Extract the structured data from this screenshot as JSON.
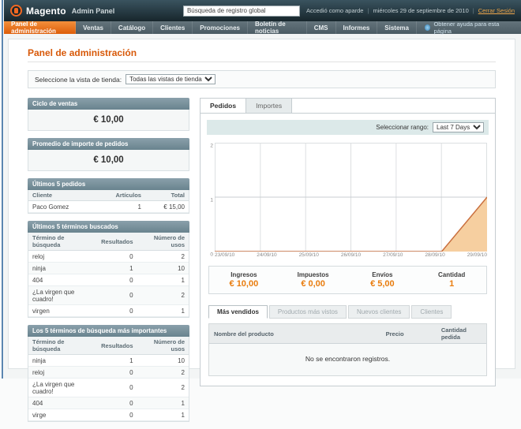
{
  "header": {
    "logo_title": "Magento",
    "logo_subtitle": "Admin Panel",
    "search_value": "Búsqueda de registro global",
    "logged_in": "Accedió como aparde",
    "date": "miércoles 29 de septiembre de 2010",
    "logout": "Cerrar Sesión"
  },
  "nav": {
    "items": [
      "Panel de administración",
      "Ventas",
      "Catálogo",
      "Clientes",
      "Promociones",
      "Boletín de noticias",
      "CMS",
      "Informes",
      "Sistema"
    ],
    "active_index": 0,
    "help": "Obtener ayuda para esta página"
  },
  "page": {
    "title": "Panel de administración",
    "store_switcher_label": "Seleccione la vista de tienda:",
    "store_switcher_value": "Todas las vistas de tienda"
  },
  "left": {
    "lifetime_sales": {
      "title": "Ciclo de ventas",
      "value": "€ 10,00"
    },
    "average_orders": {
      "title": "Promedio de importe de pedidos",
      "value": "€ 10,00"
    },
    "last_orders": {
      "title": "Últimos 5 pedidos",
      "columns": [
        "Cliente",
        "Artículos",
        "Total"
      ],
      "rows": [
        [
          "Paco Gomez",
          "1",
          "€ 15,00"
        ]
      ]
    },
    "last_search_terms": {
      "title": "Últimos 5 términos buscados",
      "columns": [
        "Término de búsqueda",
        "Resultados",
        "Número de usos"
      ],
      "rows": [
        [
          "reloj",
          "0",
          "2"
        ],
        [
          "ninja",
          "1",
          "10"
        ],
        [
          "404",
          "0",
          "1"
        ],
        [
          "¿La virgen que cuadro!",
          "0",
          "2"
        ],
        [
          "virgen",
          "0",
          "1"
        ]
      ]
    },
    "top_search_terms": {
      "title": "Los 5 términos de búsqueda más importantes",
      "columns": [
        "Término de búsqueda",
        "Resultados",
        "Número de usos"
      ],
      "rows": [
        [
          "ninja",
          "1",
          "10"
        ],
        [
          "reloj",
          "0",
          "2"
        ],
        [
          "¿La virgen que cuadro!",
          "0",
          "2"
        ],
        [
          "404",
          "0",
          "1"
        ],
        [
          "virge",
          "0",
          "1"
        ]
      ]
    }
  },
  "dashboard": {
    "tabs": [
      "Pedidos",
      "Importes"
    ],
    "active_tab_index": 0,
    "range_label": "Seleccionar rango:",
    "range_value": "Last 7 Days",
    "stats": [
      {
        "label": "Ingresos",
        "value": "€ 10,00"
      },
      {
        "label": "Impuestos",
        "value": "€ 0,00"
      },
      {
        "label": "Envíos",
        "value": "€ 5,00"
      },
      {
        "label": "Cantidad",
        "value": "1"
      }
    ],
    "bottom_tabs": [
      {
        "label": "Más vendidos",
        "active": true
      },
      {
        "label": "Productos más vistos",
        "active": false
      },
      {
        "label": "Nuevos clientes",
        "active": false
      },
      {
        "label": "Clientes",
        "active": false
      }
    ],
    "products_table": {
      "columns": [
        "Nombre del producto",
        "Precio",
        "Cantidad pedida"
      ],
      "empty_message": "No se encontraron registros."
    }
  },
  "chart_data": {
    "type": "area",
    "title": "Pedidos - Last 7 Days",
    "x": [
      "23/09/10",
      "24/09/10",
      "25/09/10",
      "26/09/10",
      "27/09/10",
      "28/09/10",
      "29/09/10"
    ],
    "values": [
      0,
      0,
      0,
      0,
      0,
      0,
      1
    ],
    "ylim": [
      0,
      2
    ],
    "yticks": [
      0,
      1,
      2
    ],
    "grid": true,
    "legend": "none",
    "fill_color": "#f6cfa0",
    "line_color": "#c96f3e",
    "grid_color": "#dcdfe1"
  },
  "colors": {
    "accent_orange": "#e97c0d",
    "nav_active": "#dd5d09",
    "widget_header": "#69838e",
    "header_bg": "#17262c"
  }
}
